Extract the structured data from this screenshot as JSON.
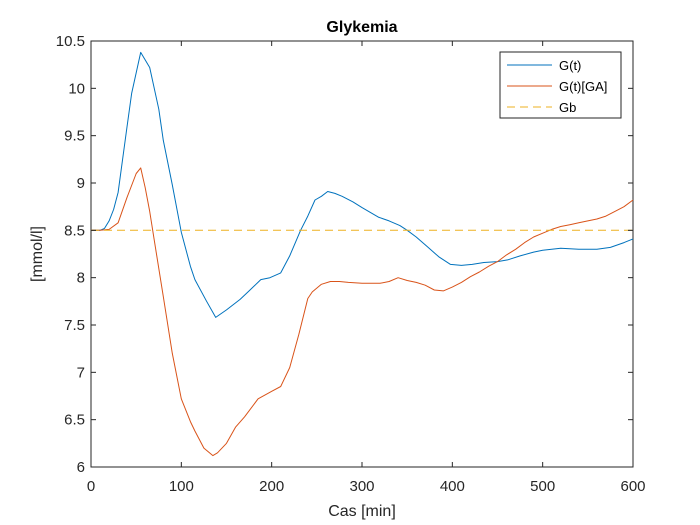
{
  "chart_data": {
    "type": "line",
    "title": "Glykemia",
    "xlabel": "Cas [min]",
    "ylabel": "[mmol/l]",
    "xlim": [
      0,
      600
    ],
    "ylim": [
      6,
      10.5
    ],
    "xticks": [
      0,
      100,
      200,
      300,
      400,
      500,
      600
    ],
    "yticks": [
      6,
      6.5,
      7,
      7.5,
      8,
      8.5,
      9,
      9.5,
      10,
      10.5
    ],
    "xtick_labels": [
      "0",
      "100",
      "200",
      "300",
      "400",
      "500",
      "600"
    ],
    "ytick_labels": [
      "6",
      "6.5",
      "7",
      "7.5",
      "8",
      "8.5",
      "9",
      "9.5",
      "10",
      "10.5"
    ],
    "grid": false,
    "legend": "top-right",
    "series": [
      {
        "name": "G(t)",
        "color": "#0072BD",
        "style": "solid",
        "x": [
          0,
          10,
          15,
          20,
          25,
          30,
          35,
          40,
          45,
          55,
          65,
          75,
          80,
          90,
          100,
          110,
          115,
          128,
          138,
          150,
          165,
          175,
          188,
          198,
          210,
          220,
          232,
          240,
          248,
          255,
          262,
          270,
          278,
          290,
          300,
          318,
          330,
          342,
          350,
          360,
          372,
          385,
          398,
          410,
          422,
          435,
          450,
          462,
          475,
          490,
          500,
          520,
          540,
          560,
          575,
          590,
          600
        ],
        "y": [
          8.5,
          8.5,
          8.52,
          8.6,
          8.72,
          8.9,
          9.25,
          9.6,
          9.95,
          10.38,
          10.22,
          9.78,
          9.45,
          8.98,
          8.48,
          8.12,
          7.98,
          7.75,
          7.58,
          7.66,
          7.77,
          7.86,
          7.98,
          8.0,
          8.05,
          8.23,
          8.5,
          8.65,
          8.82,
          8.86,
          8.91,
          8.89,
          8.86,
          8.8,
          8.74,
          8.64,
          8.6,
          8.55,
          8.5,
          8.43,
          8.33,
          8.22,
          8.14,
          8.13,
          8.14,
          8.16,
          8.17,
          8.19,
          8.23,
          8.27,
          8.29,
          8.31,
          8.3,
          8.3,
          8.32,
          8.37,
          8.41
        ]
      },
      {
        "name": "G(t)[GA]",
        "color": "#D95319",
        "style": "solid",
        "x": [
          0,
          10,
          20,
          30,
          40,
          50,
          55,
          60,
          65,
          70,
          80,
          90,
          100,
          110,
          115,
          125,
          135,
          140,
          150,
          160,
          170,
          185,
          200,
          210,
          220,
          230,
          240,
          245,
          255,
          265,
          275,
          285,
          300,
          310,
          320,
          330,
          340,
          350,
          360,
          370,
          380,
          390,
          400,
          410,
          420,
          430,
          440,
          450,
          460,
          470,
          480,
          490,
          500,
          510,
          520,
          530,
          540,
          550,
          560,
          570,
          580,
          590,
          600
        ],
        "y": [
          8.5,
          8.5,
          8.51,
          8.58,
          8.85,
          9.1,
          9.16,
          8.95,
          8.7,
          8.4,
          7.8,
          7.2,
          6.72,
          6.48,
          6.38,
          6.2,
          6.12,
          6.15,
          6.25,
          6.42,
          6.53,
          6.72,
          6.8,
          6.85,
          7.05,
          7.4,
          7.78,
          7.85,
          7.93,
          7.96,
          7.96,
          7.95,
          7.94,
          7.94,
          7.94,
          7.96,
          8.0,
          7.97,
          7.95,
          7.92,
          7.87,
          7.86,
          7.9,
          7.95,
          8.01,
          8.06,
          8.12,
          8.17,
          8.24,
          8.3,
          8.37,
          8.43,
          8.47,
          8.51,
          8.54,
          8.56,
          8.58,
          8.6,
          8.62,
          8.65,
          8.7,
          8.75,
          8.82
        ]
      },
      {
        "name": "Gb",
        "color": "#EDB120",
        "style": "dashed",
        "x": [
          0,
          600
        ],
        "y": [
          8.5,
          8.5
        ]
      }
    ]
  }
}
